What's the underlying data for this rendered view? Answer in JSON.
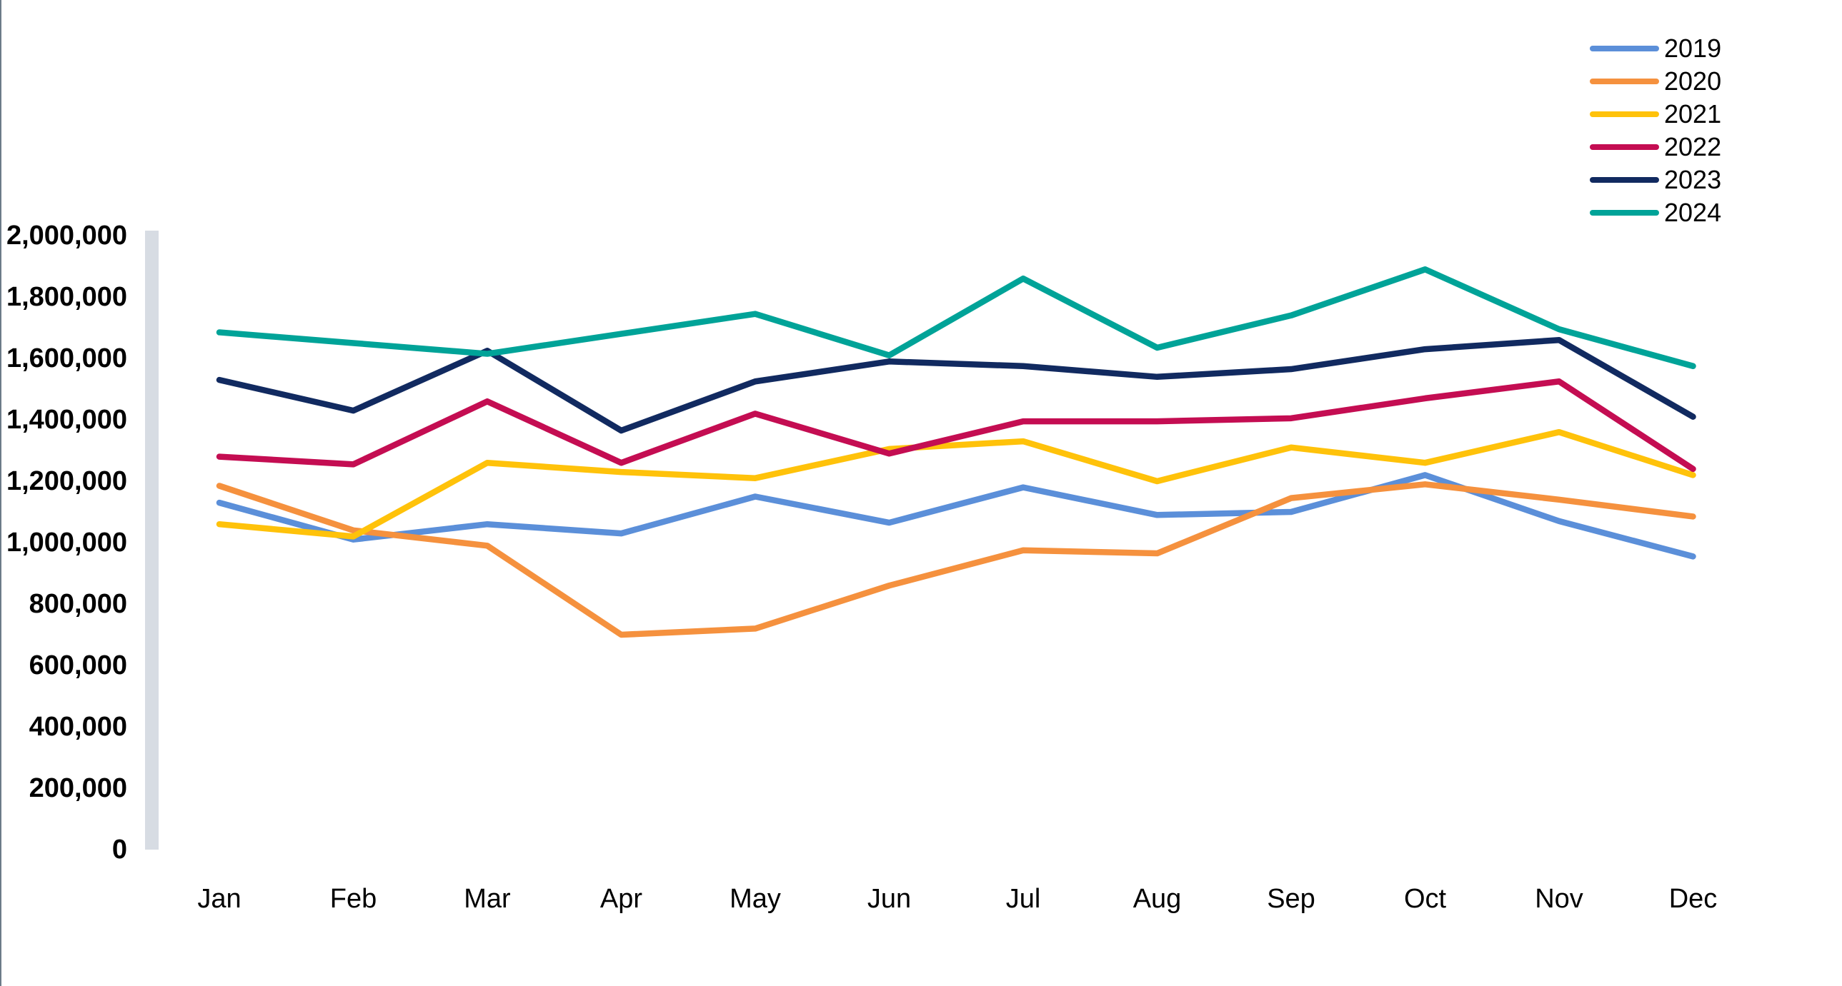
{
  "chart_data": {
    "type": "line",
    "title": "",
    "categories": [
      "Jan",
      "Feb",
      "Mar",
      "Apr",
      "May",
      "Jun",
      "Jul",
      "Aug",
      "Sep",
      "Oct",
      "Nov",
      "Dec"
    ],
    "series": [
      {
        "name": "2019",
        "color": "#5B8FD9",
        "values": [
          1130000,
          1010000,
          1060000,
          1030000,
          1150000,
          1065000,
          1180000,
          1090000,
          1100000,
          1220000,
          1070000,
          955000
        ]
      },
      {
        "name": "2020",
        "color": "#F5913E",
        "values": [
          1185000,
          1040000,
          990000,
          700000,
          720000,
          860000,
          975000,
          965000,
          1145000,
          1190000,
          1140000,
          1085000
        ]
      },
      {
        "name": "2021",
        "color": "#FFC20A",
        "values": [
          1060000,
          1020000,
          1260000,
          1230000,
          1210000,
          1305000,
          1330000,
          1200000,
          1310000,
          1260000,
          1360000,
          1220000
        ]
      },
      {
        "name": "2022",
        "color": "#C40D52",
        "values": [
          1280000,
          1255000,
          1460000,
          1260000,
          1420000,
          1290000,
          1395000,
          1395000,
          1405000,
          1470000,
          1525000,
          1240000
        ]
      },
      {
        "name": "2023",
        "color": "#112A60",
        "values": [
          1530000,
          1430000,
          1625000,
          1365000,
          1525000,
          1590000,
          1575000,
          1540000,
          1565000,
          1630000,
          1660000,
          1410000
        ]
      },
      {
        "name": "2024",
        "color": "#00A398",
        "values": [
          1685000,
          1650000,
          1615000,
          1680000,
          1745000,
          1610000,
          1860000,
          1635000,
          1740000,
          1890000,
          1695000,
          1575000
        ]
      }
    ],
    "y_axis": {
      "min": 0,
      "max": 2000000,
      "step": 200000,
      "tick_labels": [
        "0",
        "200,000",
        "400,000",
        "600,000",
        "800,000",
        "1,000,000",
        "1,200,000",
        "1,400,000",
        "1,600,000",
        "1,800,000",
        "2,000,000"
      ]
    },
    "x_axis_labels": [
      "Jan",
      "Feb",
      "Mar",
      "Apr",
      "May",
      "Jun",
      "Jul",
      "Aug",
      "Sep",
      "Oct",
      "Nov",
      "Dec"
    ],
    "legend_position": "top-right",
    "grid": false
  },
  "colors": {
    "background": "#FFFFFF",
    "axis_bar": "#D7DCE3",
    "edge_line": "#6C7B88",
    "text": "#000000"
  }
}
